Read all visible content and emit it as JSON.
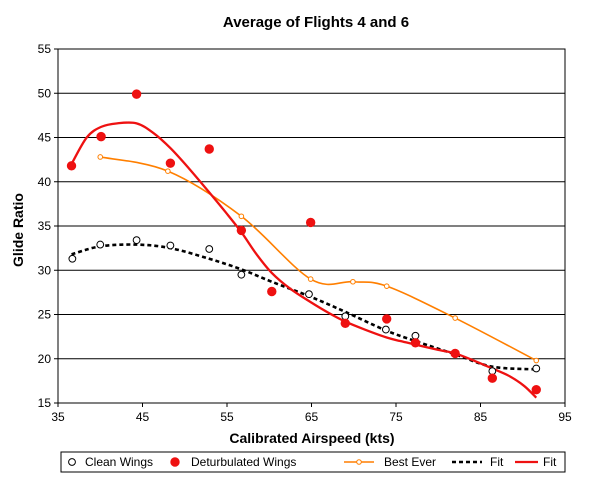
{
  "chart_data": {
    "type": "scatter",
    "title": "Average of Flights 4 and 6",
    "xlabel": "Calibrated Airspeed (kts)",
    "ylabel": "Glide Ratio",
    "xlim": [
      35,
      95
    ],
    "ylim": [
      15,
      55
    ],
    "xticks": [
      35,
      45,
      55,
      65,
      75,
      85,
      95
    ],
    "yticks": [
      15,
      20,
      25,
      30,
      35,
      40,
      45,
      50,
      55
    ],
    "grid": "horizontal",
    "legend_position": "bottom",
    "series": [
      {
        "name": "Clean Wings",
        "kind": "markers",
        "marker": "open-circle",
        "color": "#000000",
        "points": [
          [
            36.7,
            31.3
          ],
          [
            40.0,
            32.9
          ],
          [
            44.3,
            33.4
          ],
          [
            48.3,
            32.8
          ],
          [
            52.9,
            32.4
          ],
          [
            56.7,
            29.5
          ],
          [
            64.7,
            27.3
          ],
          [
            69.0,
            24.8
          ],
          [
            73.8,
            23.3
          ],
          [
            77.3,
            22.6
          ],
          [
            86.4,
            18.6
          ],
          [
            91.6,
            18.9
          ]
        ]
      },
      {
        "name": "Deturbulated Wings",
        "kind": "markers",
        "marker": "filled-circle",
        "color": "#ee1111",
        "points": [
          [
            36.6,
            41.8
          ],
          [
            40.1,
            45.1
          ],
          [
            44.3,
            49.9
          ],
          [
            48.3,
            42.1
          ],
          [
            52.9,
            43.7
          ],
          [
            56.7,
            34.5
          ],
          [
            60.3,
            27.6
          ],
          [
            64.9,
            35.4
          ],
          [
            69.0,
            24.0
          ],
          [
            73.9,
            24.5
          ],
          [
            77.3,
            21.8
          ],
          [
            82.0,
            20.6
          ],
          [
            86.4,
            17.8
          ],
          [
            91.6,
            16.5
          ]
        ]
      },
      {
        "name": "Best Ever",
        "kind": "line-markers",
        "marker": "small-open-circle",
        "color": "#ff7f00",
        "points": [
          [
            40.0,
            42.8
          ],
          [
            48.0,
            41.2
          ],
          [
            56.7,
            36.1
          ],
          [
            64.9,
            29.0
          ],
          [
            69.9,
            28.7
          ],
          [
            73.9,
            28.2
          ],
          [
            82.0,
            24.6
          ],
          [
            91.6,
            19.8
          ]
        ]
      },
      {
        "name": "Fit",
        "kind": "dashed-curve",
        "color": "#000000",
        "points": [
          [
            36.6,
            31.8
          ],
          [
            40.0,
            32.7
          ],
          [
            44.3,
            32.9
          ],
          [
            48.3,
            32.5
          ],
          [
            52.9,
            31.3
          ],
          [
            56.7,
            30.1
          ],
          [
            60.3,
            28.7
          ],
          [
            64.9,
            27.0
          ],
          [
            69.0,
            25.3
          ],
          [
            73.8,
            23.2
          ],
          [
            77.3,
            22.0
          ],
          [
            82.0,
            20.5
          ],
          [
            86.4,
            19.1
          ],
          [
            91.6,
            18.8
          ]
        ]
      },
      {
        "name": "Fit",
        "kind": "solid-curve",
        "color": "#ee1111",
        "points": [
          [
            36.6,
            42.0
          ],
          [
            38.4,
            45.0
          ],
          [
            40.1,
            46.2
          ],
          [
            42.0,
            46.6
          ],
          [
            44.3,
            46.6
          ],
          [
            46.3,
            45.5
          ],
          [
            48.3,
            43.8
          ],
          [
            50.5,
            41.5
          ],
          [
            52.9,
            38.8
          ],
          [
            54.8,
            36.6
          ],
          [
            56.7,
            34.3
          ],
          [
            58.5,
            31.8
          ],
          [
            60.3,
            29.7
          ],
          [
            62.5,
            27.9
          ],
          [
            64.9,
            26.4
          ],
          [
            67.0,
            25.2
          ],
          [
            69.0,
            24.2
          ],
          [
            71.3,
            23.3
          ],
          [
            73.9,
            22.4
          ],
          [
            75.5,
            22.0
          ],
          [
            77.3,
            21.6
          ],
          [
            80.0,
            21.0
          ],
          [
            82.0,
            20.6
          ],
          [
            84.2,
            19.8
          ],
          [
            86.4,
            18.9
          ],
          [
            88.5,
            18.0
          ],
          [
            90.2,
            16.9
          ],
          [
            91.6,
            15.6
          ]
        ]
      }
    ]
  }
}
